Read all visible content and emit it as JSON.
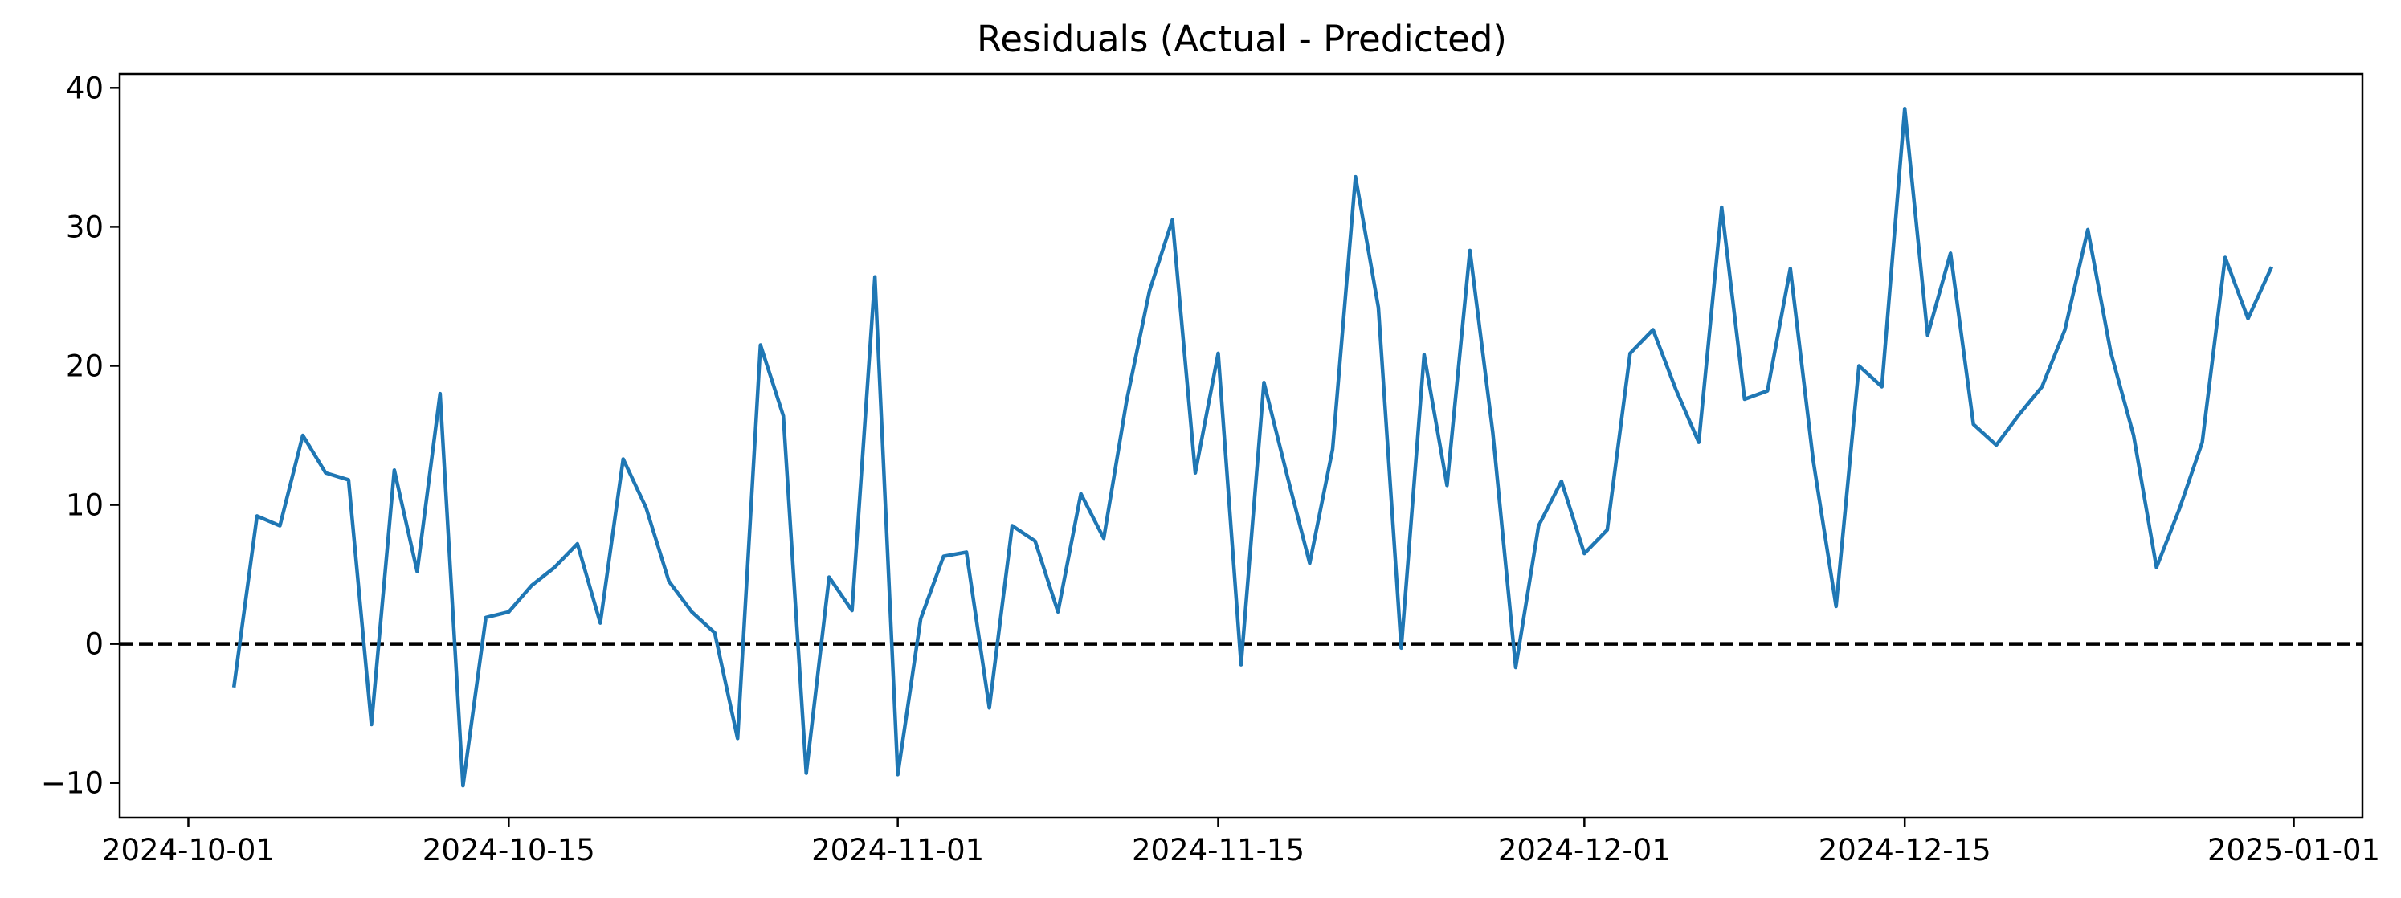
{
  "chart_data": {
    "type": "line",
    "title": "Residuals (Actual - Predicted)",
    "xlabel": "",
    "ylabel": "",
    "x_ticks": [
      "2024-10-01",
      "2024-10-15",
      "2024-11-01",
      "2024-11-15",
      "2024-12-01",
      "2024-12-15",
      "2025-01-01"
    ],
    "y_ticks": [
      -10,
      0,
      10,
      20,
      30,
      40
    ],
    "xlim": [
      "2024-09-28",
      "2025-01-04"
    ],
    "ylim": [
      -12.5,
      41
    ],
    "grid": false,
    "reference_line": {
      "y": 0,
      "style": "dashed",
      "color": "#000000"
    },
    "series": [
      {
        "color": "#1f77b4",
        "x": [
          "2024-10-03",
          "2024-10-04",
          "2024-10-05",
          "2024-10-06",
          "2024-10-07",
          "2024-10-08",
          "2024-10-09",
          "2024-10-10",
          "2024-10-11",
          "2024-10-12",
          "2024-10-13",
          "2024-10-14",
          "2024-10-15",
          "2024-10-16",
          "2024-10-17",
          "2024-10-18",
          "2024-10-19",
          "2024-10-20",
          "2024-10-21",
          "2024-10-22",
          "2024-10-23",
          "2024-10-24",
          "2024-10-25",
          "2024-10-26",
          "2024-10-27",
          "2024-10-28",
          "2024-10-29",
          "2024-10-30",
          "2024-10-31",
          "2024-11-01",
          "2024-11-02",
          "2024-11-03",
          "2024-11-04",
          "2024-11-05",
          "2024-11-06",
          "2024-11-07",
          "2024-11-08",
          "2024-11-09",
          "2024-11-10",
          "2024-11-11",
          "2024-11-12",
          "2024-11-13",
          "2024-11-14",
          "2024-11-15",
          "2024-11-16",
          "2024-11-17",
          "2024-11-18",
          "2024-11-19",
          "2024-11-20",
          "2024-11-21",
          "2024-11-22",
          "2024-11-23",
          "2024-11-24",
          "2024-11-25",
          "2024-11-26",
          "2024-11-27",
          "2024-11-28",
          "2024-11-29",
          "2024-11-30",
          "2024-12-01",
          "2024-12-02",
          "2024-12-03",
          "2024-12-04",
          "2024-12-05",
          "2024-12-06",
          "2024-12-07",
          "2024-12-08",
          "2024-12-09",
          "2024-12-10",
          "2024-12-11",
          "2024-12-12",
          "2024-12-13",
          "2024-12-14",
          "2024-12-15",
          "2024-12-16",
          "2024-12-17",
          "2024-12-18",
          "2024-12-19",
          "2024-12-20",
          "2024-12-21",
          "2024-12-22",
          "2024-12-23",
          "2024-12-24",
          "2024-12-25",
          "2024-12-26",
          "2024-12-27",
          "2024-12-28",
          "2024-12-29",
          "2024-12-30",
          "2024-12-31"
        ],
        "values": [
          -3.0,
          9.2,
          8.5,
          15.0,
          12.3,
          11.8,
          -5.8,
          12.5,
          5.2,
          18.0,
          -10.2,
          1.9,
          2.3,
          4.2,
          5.5,
          7.2,
          1.5,
          13.3,
          9.8,
          4.5,
          2.3,
          0.8,
          -6.8,
          21.5,
          16.4,
          -9.3,
          4.8,
          2.4,
          26.4,
          -9.4,
          1.8,
          6.3,
          6.6,
          -4.6,
          8.5,
          7.4,
          2.3,
          10.8,
          7.6,
          17.5,
          25.4,
          30.5,
          12.3,
          20.9,
          -1.5,
          18.8,
          12.2,
          5.8,
          14.0,
          33.6,
          24.2,
          -0.3,
          20.8,
          11.4,
          28.3,
          15.2,
          -1.7,
          8.5,
          11.7,
          6.5,
          8.2,
          20.9,
          22.6,
          18.3,
          14.5,
          31.4,
          17.6,
          18.2,
          27.0,
          13.2,
          2.7,
          20.0,
          18.5,
          38.5,
          22.2,
          28.1,
          15.8,
          14.3,
          16.5,
          18.5,
          22.6,
          29.8,
          21.0,
          15.0,
          5.5,
          9.7,
          14.5,
          27.8,
          23.4,
          27.0
        ]
      }
    ]
  }
}
